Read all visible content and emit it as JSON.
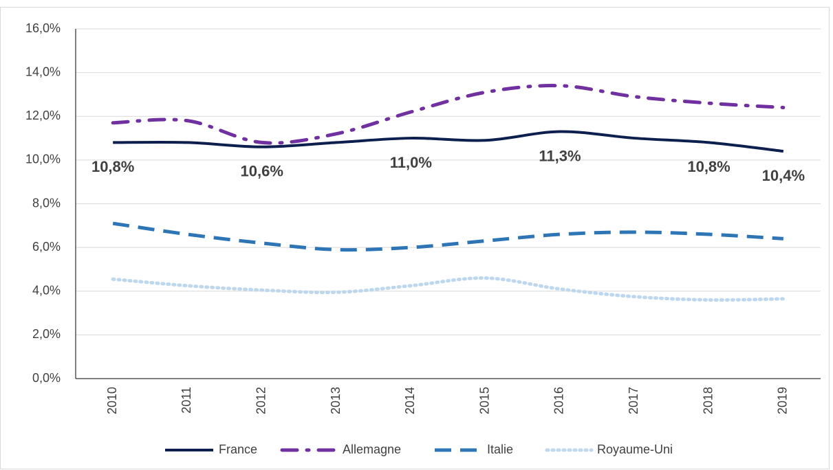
{
  "chart_data": {
    "type": "line",
    "categories": [
      "2010",
      "2011",
      "2012",
      "2013",
      "2014",
      "2015",
      "2016",
      "2017",
      "2018",
      "2019"
    ],
    "series": [
      {
        "name": "France",
        "color": "#0d1f4e",
        "style": "solid",
        "values": [
          10.8,
          10.8,
          10.6,
          10.8,
          11.0,
          10.9,
          11.3,
          11.0,
          10.8,
          10.4
        ],
        "value_labels": [
          "10,8%",
          null,
          "10,6%",
          null,
          "11,0%",
          null,
          "11,3%",
          null,
          "10,8%",
          "10,4%"
        ]
      },
      {
        "name": "Allemagne",
        "color": "#7030a0",
        "style": "dashdot",
        "values": [
          11.7,
          11.8,
          10.8,
          11.2,
          12.2,
          13.1,
          13.4,
          12.9,
          12.6,
          12.4
        ]
      },
      {
        "name": "Italie",
        "color": "#2e75b6",
        "style": "dashed",
        "values": [
          7.1,
          6.6,
          6.2,
          5.9,
          6.0,
          6.3,
          6.6,
          6.7,
          6.6,
          6.4
        ]
      },
      {
        "name": "Royaume-Uni",
        "color": "#bdd7ee",
        "style": "dotted",
        "values": [
          4.55,
          4.25,
          4.05,
          3.95,
          4.25,
          4.6,
          4.1,
          3.75,
          3.6,
          3.65
        ]
      }
    ],
    "ylim": [
      0,
      16
    ],
    "yticks": [
      {
        "value": 0,
        "label": "0,0%"
      },
      {
        "value": 2,
        "label": "2,0%"
      },
      {
        "value": 4,
        "label": "4,0%"
      },
      {
        "value": 6,
        "label": "6,0%"
      },
      {
        "value": 8,
        "label": "8,0%"
      },
      {
        "value": 10,
        "label": "10,0%"
      },
      {
        "value": 12,
        "label": "12,0%"
      },
      {
        "value": 14,
        "label": "14,0%"
      },
      {
        "value": 16,
        "label": "16,0%"
      }
    ],
    "grid": true,
    "legend": "bottom"
  }
}
